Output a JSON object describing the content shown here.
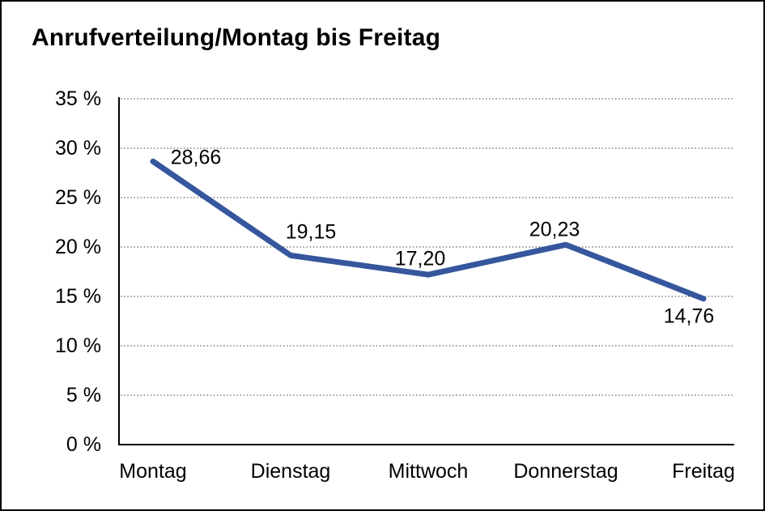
{
  "title": "Anrufverteilung/Montag bis Freitag",
  "colors": {
    "line": "#36569D",
    "grid": "#3c3c3c",
    "axis": "#000000",
    "border": "#000000",
    "background": "#ffffff",
    "text": "#000000"
  },
  "chart_data": {
    "type": "line",
    "title": "Anrufverteilung/Montag bis Freitag",
    "categories": [
      "Montag",
      "Dienstag",
      "Mittwoch",
      "Donnerstag",
      "Freitag"
    ],
    "values": [
      28.66,
      19.15,
      17.2,
      20.23,
      14.76
    ],
    "value_labels": [
      "28,66",
      "19,15",
      "17,20",
      "20,23",
      "14,76"
    ],
    "xlabel": "",
    "ylabel": "",
    "ylim": [
      0,
      35
    ],
    "ytick_step": 5,
    "ytick_labels": [
      "0 %",
      "5 %",
      "10 %",
      "15 %",
      "20 %",
      "25 %",
      "30 %",
      "35 %"
    ],
    "grid": "horizontal-dotted",
    "legend": "none"
  }
}
